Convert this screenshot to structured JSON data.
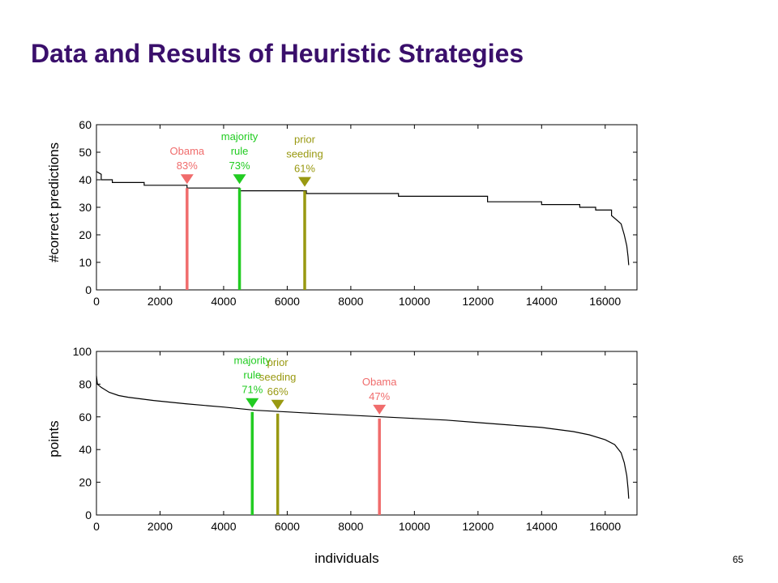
{
  "slide": {
    "title": "Data and Results of Heuristic Strategies",
    "page_number": "65",
    "xlabel": "individuals"
  },
  "colors": {
    "obama": "#f06c6c",
    "majority": "#22cc22",
    "prior": "#999911",
    "curve": "#000000",
    "title": "#3a0f6b"
  },
  "chart_data": [
    {
      "type": "line",
      "ylabel": "#correct predictions",
      "xlim": [
        0,
        17000
      ],
      "ylim": [
        0,
        60
      ],
      "xticks": [
        0,
        2000,
        4000,
        6000,
        8000,
        10000,
        12000,
        14000,
        16000
      ],
      "yticks": [
        0,
        10,
        20,
        30,
        40,
        50,
        60
      ],
      "curve": {
        "x": [
          0,
          150,
          150,
          500,
          500,
          1500,
          1500,
          2850,
          2850,
          4500,
          4500,
          6600,
          6600,
          9500,
          9500,
          12300,
          12300,
          14000,
          14000,
          15200,
          15200,
          15700,
          15700,
          16200,
          16200,
          16500,
          16600,
          16680,
          16720,
          16740
        ],
        "y": [
          43,
          42,
          40,
          40,
          39,
          39,
          38,
          38,
          37,
          37,
          36,
          36,
          35,
          35,
          34,
          34,
          32,
          32,
          31,
          31,
          30,
          30,
          29,
          29,
          27,
          24,
          20,
          16,
          12,
          9
        ]
      },
      "markers": [
        {
          "key": "obama",
          "label": [
            "Obama",
            "83%"
          ],
          "x": 2850,
          "y": 37
        },
        {
          "key": "majority",
          "label": [
            "majority",
            "rule",
            "73%"
          ],
          "x": 4500,
          "y": 37
        },
        {
          "key": "prior",
          "label": [
            "prior",
            "seeding",
            "61%"
          ],
          "x": 6550,
          "y": 36
        }
      ]
    },
    {
      "type": "line",
      "ylabel": "points",
      "xlim": [
        0,
        17000
      ],
      "ylim": [
        0,
        100
      ],
      "xticks": [
        0,
        2000,
        4000,
        6000,
        8000,
        10000,
        12000,
        14000,
        16000
      ],
      "yticks": [
        0,
        20,
        40,
        60,
        80,
        100
      ],
      "curve": {
        "x": [
          0,
          30,
          150,
          400,
          700,
          1000,
          1400,
          1800,
          2300,
          2800,
          3400,
          4000,
          4500,
          5000,
          5500,
          6000,
          6500,
          7000,
          8000,
          9000,
          10000,
          11000,
          12000,
          13000,
          14000,
          15000,
          15500,
          16000,
          16300,
          16500,
          16600,
          16680,
          16720,
          16740
        ],
        "y": [
          85,
          80,
          78,
          75,
          73,
          72,
          71,
          70,
          69,
          68,
          67,
          66,
          65,
          64,
          63.5,
          63,
          62.5,
          62,
          61,
          60,
          59,
          58,
          56.5,
          55,
          53.5,
          51,
          49,
          46,
          43,
          38,
          32,
          24,
          16,
          10
        ]
      },
      "markers": [
        {
          "key": "majority",
          "label": [
            "majority",
            "rule",
            "71%"
          ],
          "x": 4900,
          "y": 63
        },
        {
          "key": "prior",
          "label": [
            "prior",
            "seeding",
            "66%"
          ],
          "x": 5700,
          "y": 62
        },
        {
          "key": "obama",
          "label": [
            "Obama",
            "47%"
          ],
          "x": 8900,
          "y": 59
        }
      ]
    }
  ]
}
